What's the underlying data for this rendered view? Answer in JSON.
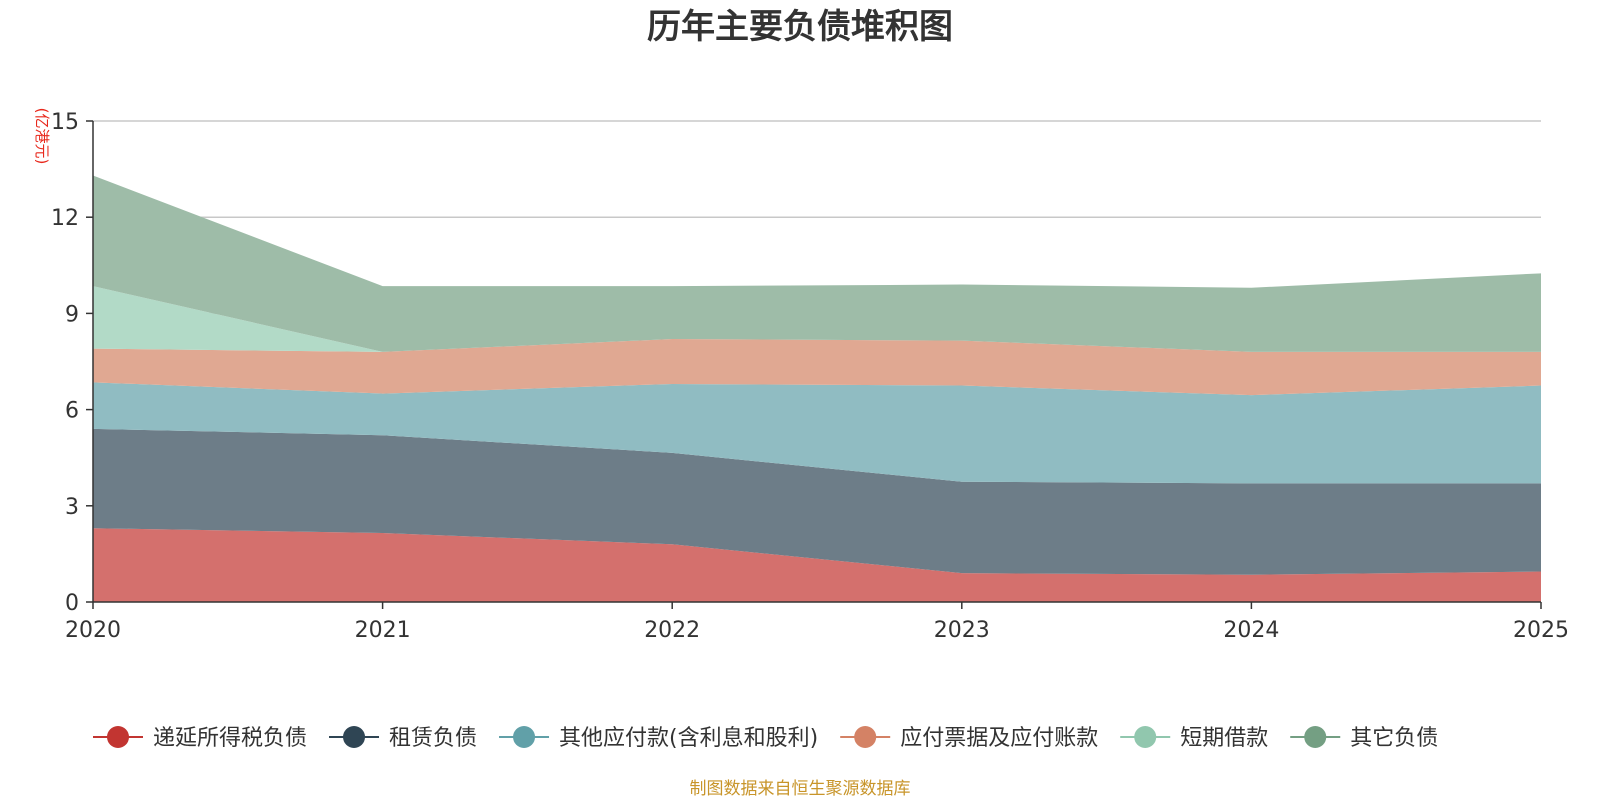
{
  "chart_data": {
    "type": "area",
    "stacked": true,
    "title": "历年主要负债堆积图",
    "unit": "(亿港元)",
    "x": [
      "2020",
      "2021",
      "2022",
      "2023",
      "2024",
      "2025"
    ],
    "ylim": [
      0,
      15
    ],
    "yticks": [
      0,
      3,
      6,
      9,
      12,
      15
    ],
    "grid": true,
    "legend_position": "bottom",
    "series": [
      {
        "name": "递延所得税负债",
        "color": "#c23531",
        "fill": "#d4706d",
        "values": [
          2.3,
          2.15,
          1.8,
          0.9,
          0.85,
          0.95
        ]
      },
      {
        "name": "租赁负债",
        "color": "#2f4554",
        "fill": "#6d7d88",
        "values": [
          3.1,
          3.05,
          2.85,
          2.85,
          2.85,
          2.75
        ]
      },
      {
        "name": "其他应付款(含利息和股利)",
        "color": "#61a0a8",
        "fill": "#90bcc2",
        "values": [
          1.45,
          1.3,
          2.15,
          3.0,
          2.75,
          3.05
        ]
      },
      {
        "name": "应付票据及应付账款",
        "color": "#d48265",
        "fill": "#e0a892",
        "values": [
          1.05,
          1.3,
          1.4,
          1.4,
          1.35,
          1.05
        ]
      },
      {
        "name": "短期借款",
        "color": "#91c7ae",
        "fill": "#b2dac7",
        "values": [
          1.95,
          0.0,
          0.0,
          0.0,
          0.0,
          0.0
        ]
      },
      {
        "name": "其它负债",
        "color": "#749f83",
        "fill": "#9ebca8",
        "values": [
          3.45,
          2.05,
          1.65,
          1.75,
          2.0,
          2.45
        ]
      }
    ],
    "source": "制图数据来自恒生聚源数据库"
  }
}
